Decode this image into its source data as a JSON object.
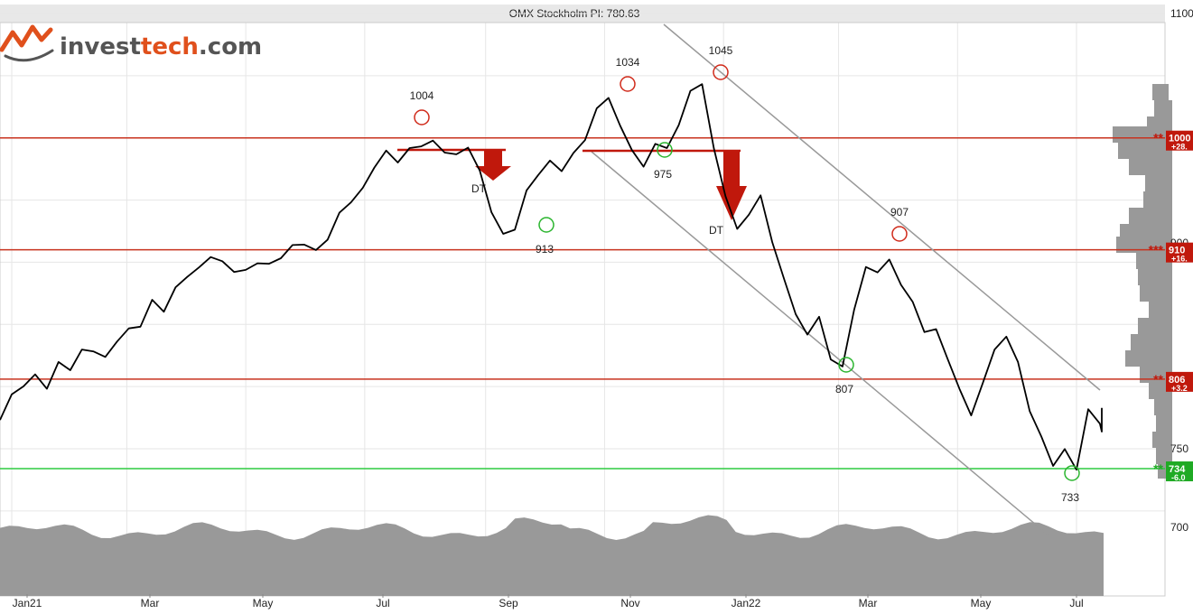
{
  "logo": {
    "part1": "invest",
    "part2": "tech",
    "part3": ".com"
  },
  "chart_data": {
    "type": "line",
    "title": "OMX Stockholm PI: 780.63",
    "ylim": [
      650,
      1100
    ],
    "y_ticks": [
      "1100",
      "900",
      "750",
      "700"
    ],
    "y_tick_values": [
      1100,
      900,
      750,
      700
    ],
    "x_ticks": [
      "Jan21",
      "Mar",
      "May",
      "Jul",
      "Sep",
      "Nov",
      "Jan22",
      "Mar",
      "May",
      "Jul"
    ],
    "x_tick_values": [
      0,
      59,
      120,
      181,
      243,
      304,
      365,
      424,
      485,
      546
    ],
    "x_range": [
      -6,
      580
    ],
    "grid": true,
    "series": [
      {
        "x": [
          -6,
          0,
          6,
          12,
          18,
          24,
          30,
          36,
          42,
          48,
          54,
          60,
          66,
          72,
          78,
          84,
          90,
          96,
          102,
          108,
          114,
          120,
          126,
          132,
          138,
          144,
          150,
          156,
          162,
          168,
          174,
          180,
          186,
          192,
          198,
          204,
          210,
          216,
          222,
          228,
          234,
          240,
          246,
          252,
          258,
          264,
          270,
          276,
          282,
          288,
          294,
          300,
          306,
          312,
          318,
          324,
          330,
          336,
          342,
          348,
          354,
          360,
          366,
          372,
          378,
          384,
          390,
          396,
          402,
          408,
          414,
          420,
          426,
          432,
          438,
          444,
          450,
          456,
          462,
          468,
          474,
          480,
          486,
          492,
          498,
          504,
          510,
          516,
          522,
          528,
          534,
          540,
          546,
          552,
          558,
          564,
          570,
          576
        ],
        "values": [
          775,
          792,
          802,
          808,
          800,
          818,
          815,
          828,
          830,
          822,
          838,
          845,
          850,
          868,
          862,
          878,
          890,
          894,
          906,
          899,
          894,
          892,
          901,
          897,
          905,
          912,
          916,
          908,
          920,
          938,
          950,
          958,
          978,
          988,
          982,
          990,
          995,
          996,
          990,
          985,
          994,
          972,
          942,
          921,
          928,
          956,
          972,
          980,
          975,
          986,
          1000,
          1022,
          1034,
          1008,
          992,
          975,
          997,
          990,
          1012,
          1036,
          1045,
          990,
          955,
          925,
          940,
          952,
          918,
          885,
          860,
          840,
          858,
          820,
          818,
          860,
          898,
          890,
          904,
          880,
          870,
          842,
          848,
          820,
          800,
          775,
          805,
          828,
          842,
          818,
          782,
          758,
          738,
          748,
          735,
          780,
          772,
          762,
          770,
          781
        ]
      }
    ],
    "annotations": {
      "peaks": [
        {
          "label": "1004",
          "x": 223,
          "y": 1004
        },
        {
          "label": "1034",
          "x": 312,
          "y": 1034
        },
        {
          "label": "1045",
          "x": 354,
          "y": 1045
        },
        {
          "label": "907",
          "x": 445,
          "y": 907
        }
      ],
      "troughs": [
        {
          "label": "913",
          "x": 272,
          "y": 913
        },
        {
          "label": "975",
          "x": 330,
          "y": 975
        },
        {
          "label": "807",
          "x": 430,
          "y": 807
        },
        {
          "label": "733",
          "x": 554,
          "y": 733
        }
      ],
      "signals": [
        {
          "label": "DT",
          "x": 245,
          "level": 980
        },
        {
          "label": "DT",
          "x": 363,
          "level": 980
        }
      ],
      "levels": [
        {
          "value": 1000,
          "label": "1000",
          "sub": "+28.",
          "stars": "**",
          "color": "#c0180c",
          "line": "#c8321e"
        },
        {
          "value": 910,
          "label": "910",
          "sub": "+16.",
          "stars": "***",
          "color": "#c0180c",
          "line": "#c8321e"
        },
        {
          "value": 806,
          "label": "806",
          "sub": "+3.2",
          "stars": "**",
          "color": "#c0180c",
          "line": "#c8321e"
        },
        {
          "value": 734,
          "label": "734",
          "sub": "-6.0",
          "stars": "**",
          "color": "#1faa24",
          "line": "#2ecc40"
        }
      ]
    },
    "colors": {
      "price": "#000000",
      "resistance": "#c8321e",
      "support": "#2ecc40",
      "trend": "#999999",
      "volume": "#999999",
      "title_bar": "#e8e8e8"
    }
  }
}
